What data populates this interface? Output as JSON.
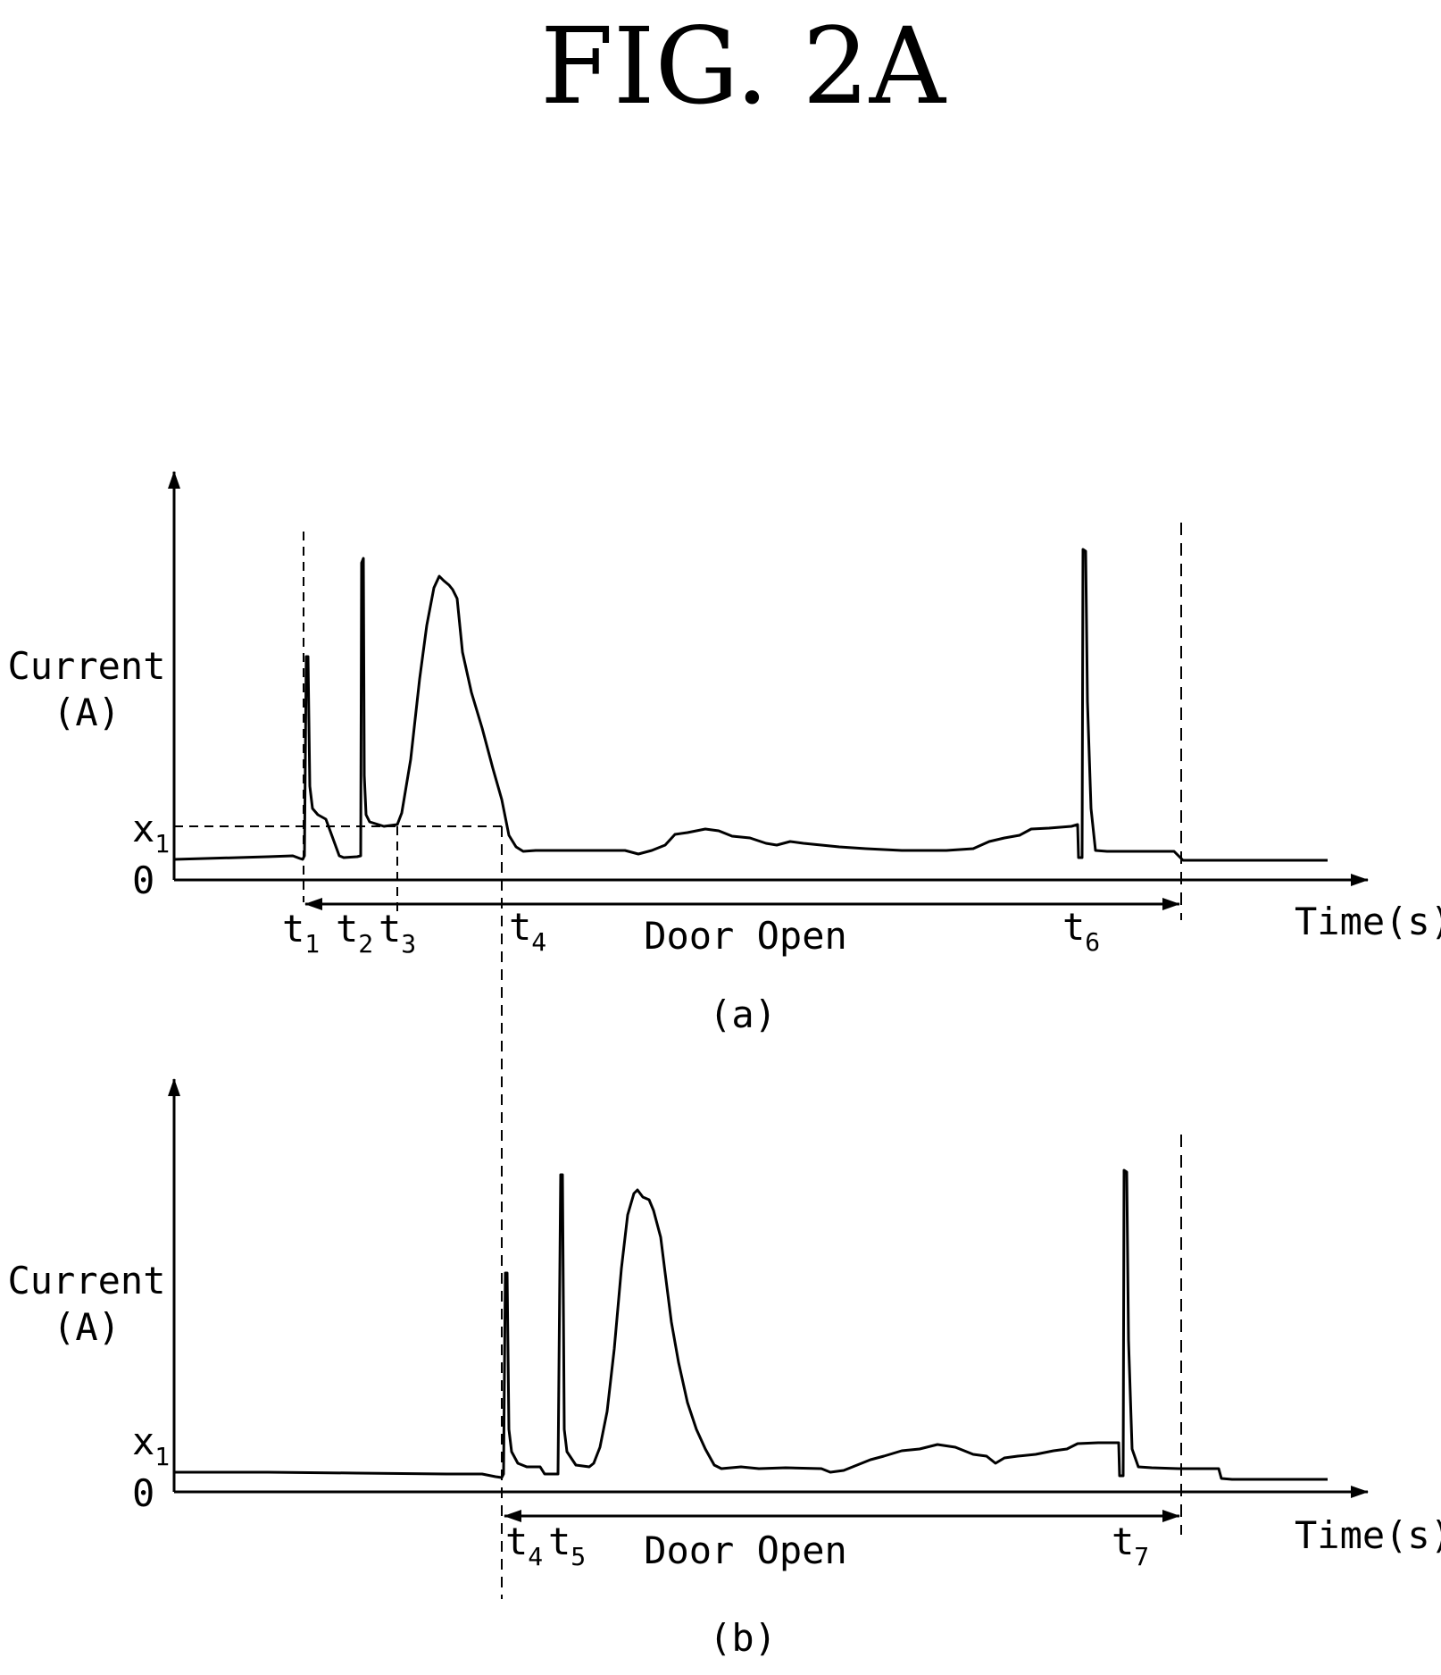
{
  "figure_title": "FIG. 2A",
  "panels": [
    {
      "caption": "(a)",
      "y_label_line1": "Current",
      "y_label_line2": "(A)",
      "x_label": "Time(s)",
      "threshold_label": "x",
      "threshold_sub": "1",
      "zero_label": "0",
      "span_label": "Door Open",
      "time_marks": [
        {
          "base": "t",
          "sub": "1"
        },
        {
          "base": "t",
          "sub": "2"
        },
        {
          "base": "t",
          "sub": "3"
        },
        {
          "base": "t",
          "sub": "4"
        },
        {
          "base": "t",
          "sub": "6"
        }
      ]
    },
    {
      "caption": "(b)",
      "y_label_line1": "Current",
      "y_label_line2": "(A)",
      "x_label": "Time(s)",
      "threshold_label": "x",
      "threshold_sub": "1",
      "zero_label": "0",
      "span_label": "Door Open",
      "time_marks": [
        {
          "base": "t",
          "sub": "4"
        },
        {
          "base": "t",
          "sub": "5"
        },
        {
          "base": "t",
          "sub": "7"
        }
      ]
    }
  ],
  "colors": {
    "ink": "#000000",
    "background": "#ffffff"
  }
}
